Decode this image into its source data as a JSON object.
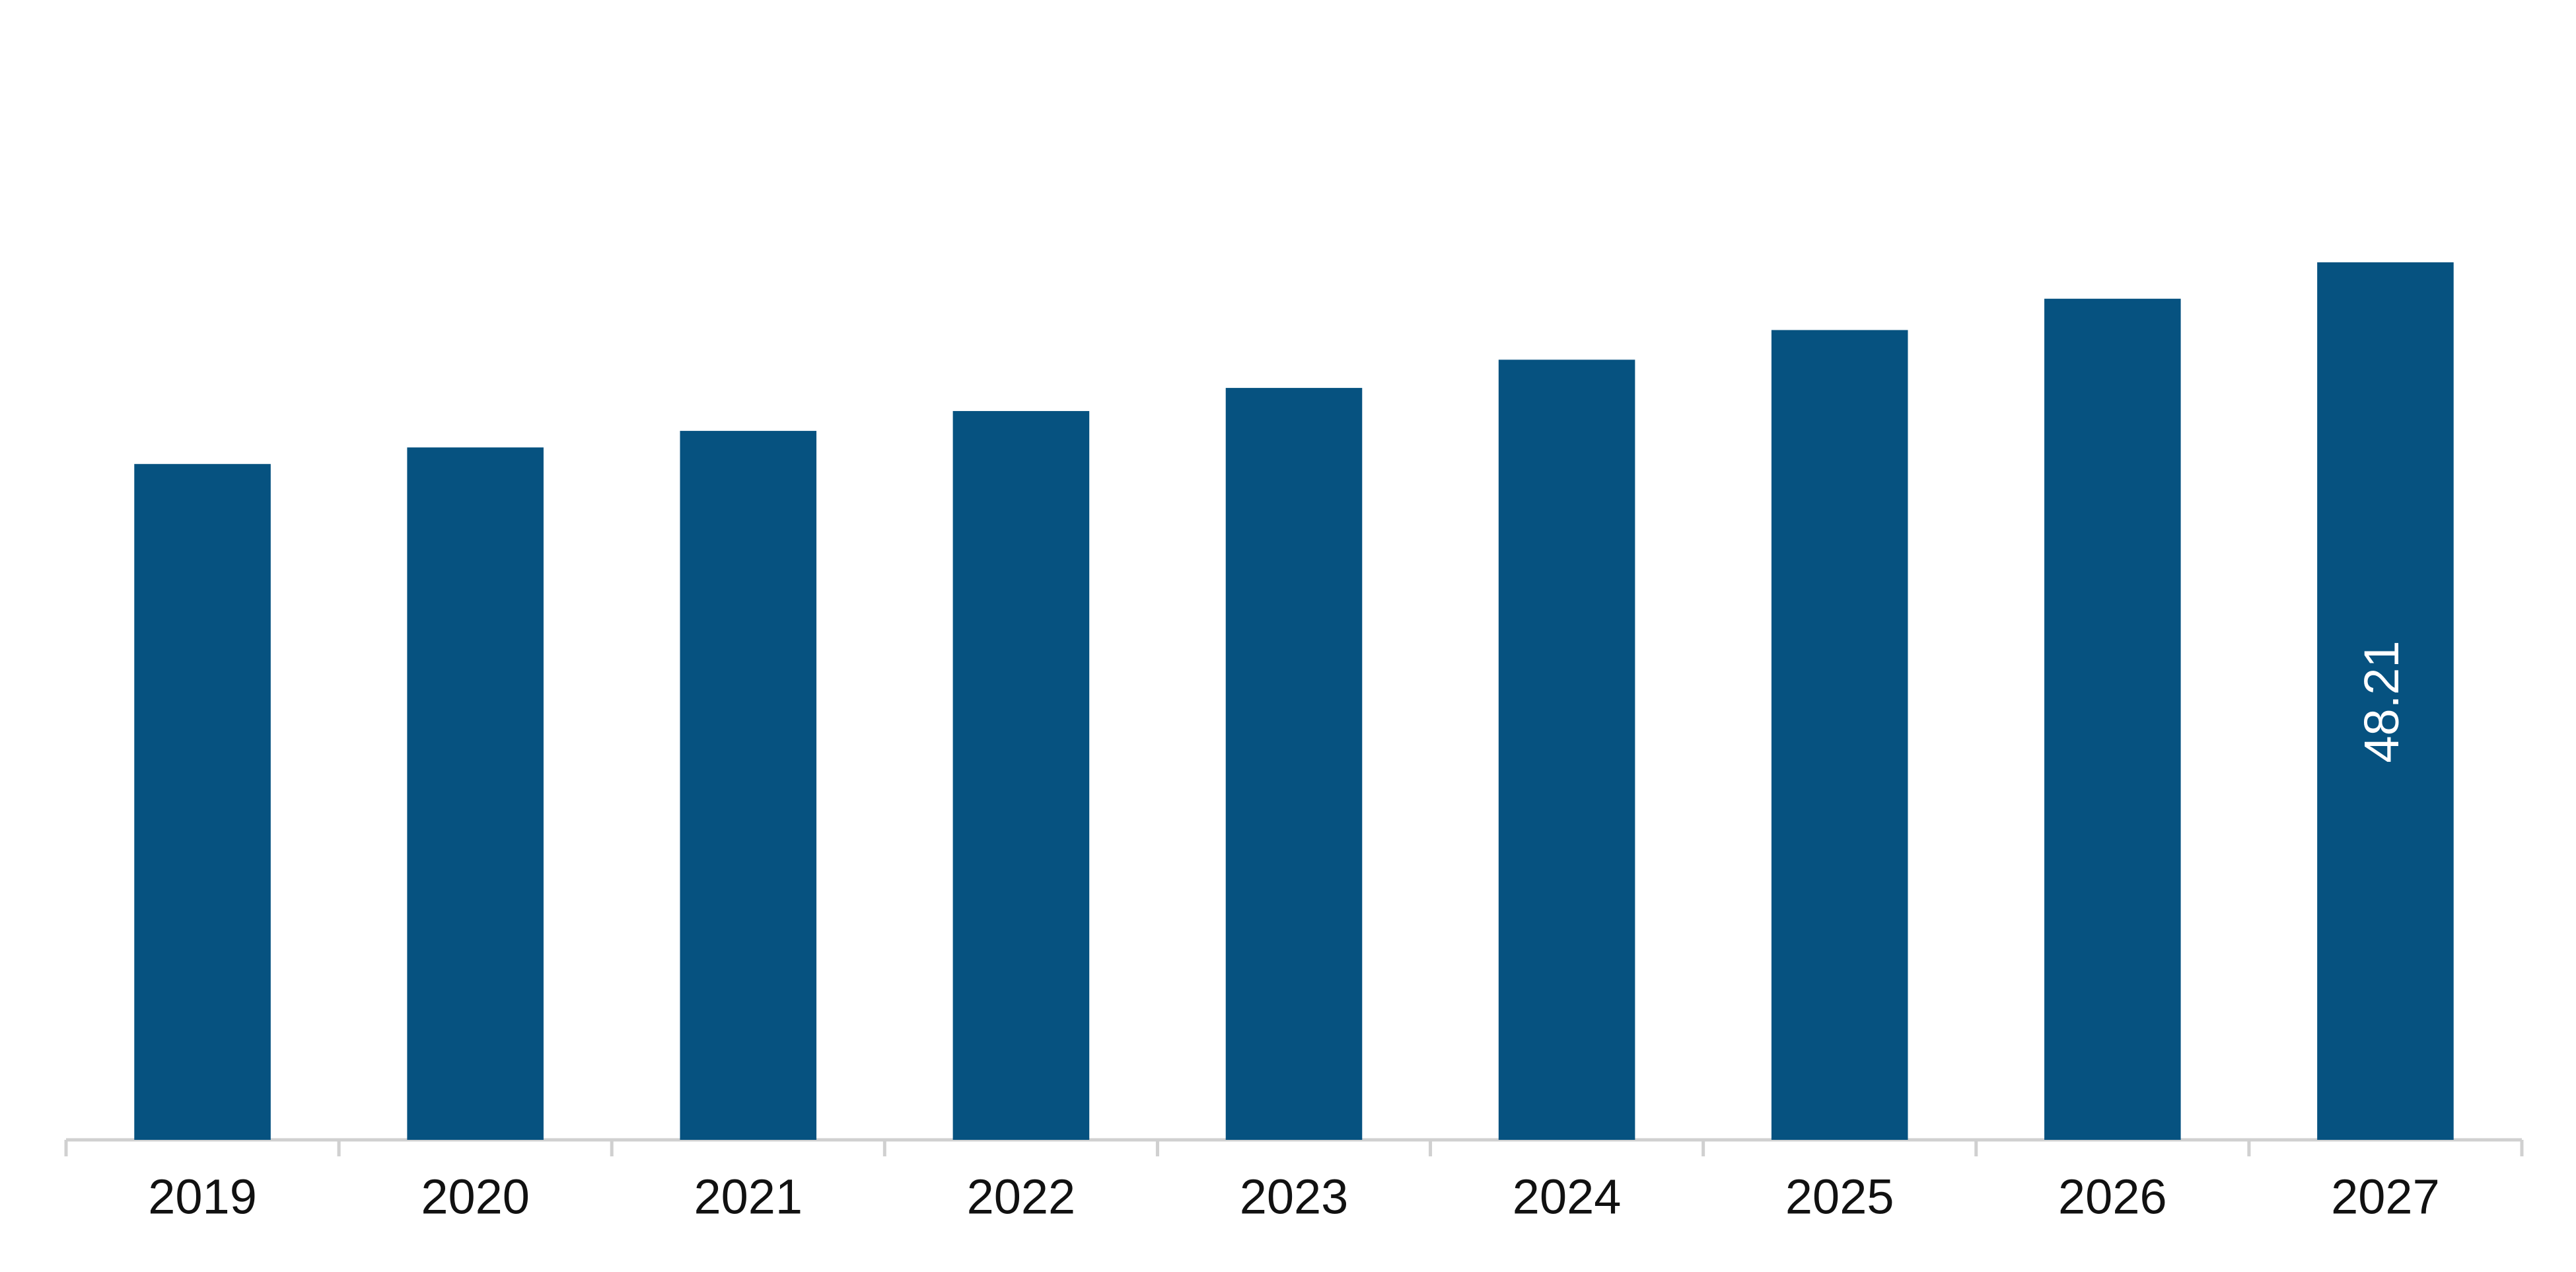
{
  "chart_data": {
    "type": "bar",
    "categories": [
      "2019",
      "2020",
      "2021",
      "2022",
      "2023",
      "2024",
      "2025",
      "2026",
      "2027"
    ],
    "values": [
      37.13,
      38.04,
      38.95,
      40.04,
      41.31,
      42.86,
      44.49,
      46.21,
      48.21
    ],
    "value_labels": [
      null,
      null,
      null,
      null,
      null,
      null,
      null,
      null,
      "48.21"
    ],
    "color": "#065280"
  }
}
